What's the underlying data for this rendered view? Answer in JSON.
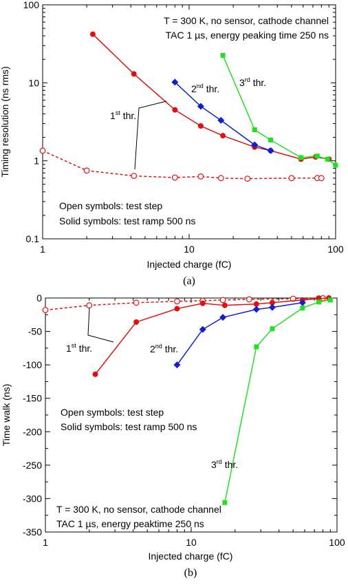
{
  "chart_data": [
    {
      "type": "line",
      "panel_label": "(a)",
      "xlabel": "Injected charge (fC)",
      "ylabel": "Timing resolution (ns rms)",
      "xscale": "log",
      "yscale": "log",
      "xlim": [
        1,
        100
      ],
      "ylim": [
        0.1,
        100
      ],
      "x_ticks": [
        1,
        10,
        100
      ],
      "x_tick_labels": [
        "1",
        "10",
        "100"
      ],
      "y_ticks": [
        0.1,
        1,
        10,
        100
      ],
      "y_tick_labels": [
        "0.1",
        "1",
        "10",
        "100"
      ],
      "annotations": [
        "T = 300 K, no sensor, cathode channel",
        "TAC 1 µs, energy peaking time 250 ns"
      ],
      "notes": [
        "Open symbols: test step",
        "Solid symbols: test ramp 500 ns"
      ],
      "series": [
        {
          "label": "1st thr.",
          "marker": "open-circle",
          "dashed": true,
          "color": "#e01010",
          "x": [
            1,
            2,
            4.2,
            8,
            12,
            16.5,
            25,
            50,
            75,
            80
          ],
          "y": [
            1.35,
            0.75,
            0.64,
            0.61,
            0.63,
            0.6,
            0.59,
            0.6,
            0.6,
            0.6
          ]
        },
        {
          "label": "1st thr.",
          "marker": "filled-circle",
          "dashed": false,
          "color": "#e01010",
          "x": [
            2.2,
            4.2,
            8,
            12,
            17,
            28,
            36,
            58,
            73,
            90
          ],
          "y": [
            42,
            13,
            4.5,
            2.8,
            2.1,
            1.5,
            1.35,
            1.05,
            1.12,
            1.05
          ]
        },
        {
          "label": "2nd thr.",
          "marker": "filled-diamond",
          "dashed": false,
          "color": "#1020d0",
          "x": [
            8,
            12,
            16.5,
            28,
            36
          ],
          "y": [
            10.2,
            5.0,
            3.3,
            1.6,
            1.35
          ]
        },
        {
          "label": "3rd thr.",
          "marker": "filled-square",
          "dashed": false,
          "color": "#22e022",
          "x": [
            17,
            28,
            36,
            58,
            75,
            88,
            100
          ],
          "y": [
            22.5,
            2.5,
            1.85,
            1.1,
            1.15,
            1.05,
            0.88
          ]
        }
      ],
      "series_labels": [
        {
          "base": "1",
          "sup": "st",
          "tail": " thr."
        },
        {
          "base": "2",
          "sup": "nd",
          "tail": " thr."
        },
        {
          "base": "3",
          "sup": "rd",
          "tail": " thr."
        }
      ]
    },
    {
      "type": "line",
      "panel_label": "(b)",
      "xlabel": "Injected charge (fC)",
      "ylabel": "Time walk (ns)",
      "xscale": "log",
      "yscale": "linear",
      "xlim": [
        1,
        100
      ],
      "ylim": [
        -350,
        0
      ],
      "x_ticks": [
        1,
        10,
        100
      ],
      "x_tick_labels": [
        "1",
        "10",
        "100"
      ],
      "y_ticks": [
        0,
        -50,
        -100,
        -150,
        -200,
        -250,
        -300,
        -350
      ],
      "y_tick_labels": [
        "0",
        "-50",
        "-100",
        "-150",
        "-200",
        "-250",
        "-300",
        "-350"
      ],
      "annotations": [
        "T = 300 K, no sensor, cathode channel",
        "TAC 1 µs, energy peaktime 250 ns"
      ],
      "notes": [
        "Open symbols: test step",
        "Solid symbols: test ramp 500 ns"
      ],
      "series": [
        {
          "label": "1st thr.",
          "marker": "open-circle",
          "dashed": true,
          "color": "#e01010",
          "x": [
            1,
            2,
            4.2,
            8,
            12,
            16.5,
            25,
            50,
            75,
            80
          ],
          "y": [
            -18,
            -11,
            -7,
            -5,
            -4,
            -3,
            -2,
            -1,
            -0.5,
            -0.3
          ]
        },
        {
          "label": "1st thr.",
          "marker": "filled-circle",
          "dashed": false,
          "color": "#e01010",
          "x": [
            2.2,
            4.2,
            8,
            12,
            17,
            28,
            36,
            58,
            75,
            88
          ],
          "y": [
            -114,
            -36,
            -16,
            -8,
            -11,
            -9,
            -7,
            -3,
            -1,
            0
          ]
        },
        {
          "label": "2nd thr.",
          "marker": "filled-diamond",
          "dashed": false,
          "color": "#1020d0",
          "x": [
            8,
            12,
            16.5,
            28,
            36,
            58
          ],
          "y": [
            -100,
            -47,
            -29,
            -17,
            -14,
            -7
          ]
        },
        {
          "label": "3rd thr.",
          "marker": "filled-square",
          "dashed": false,
          "color": "#22e022",
          "x": [
            17,
            28,
            36,
            58,
            75,
            90
          ],
          "y": [
            -306,
            -73,
            -46,
            -15,
            -6,
            -3
          ]
        }
      ],
      "series_labels": [
        {
          "base": "1",
          "sup": "st",
          "tail": " thr."
        },
        {
          "base": "2",
          "sup": "nd",
          "tail": " thr."
        },
        {
          "base": "3",
          "sup": "rd",
          "tail": " thr."
        }
      ]
    }
  ]
}
